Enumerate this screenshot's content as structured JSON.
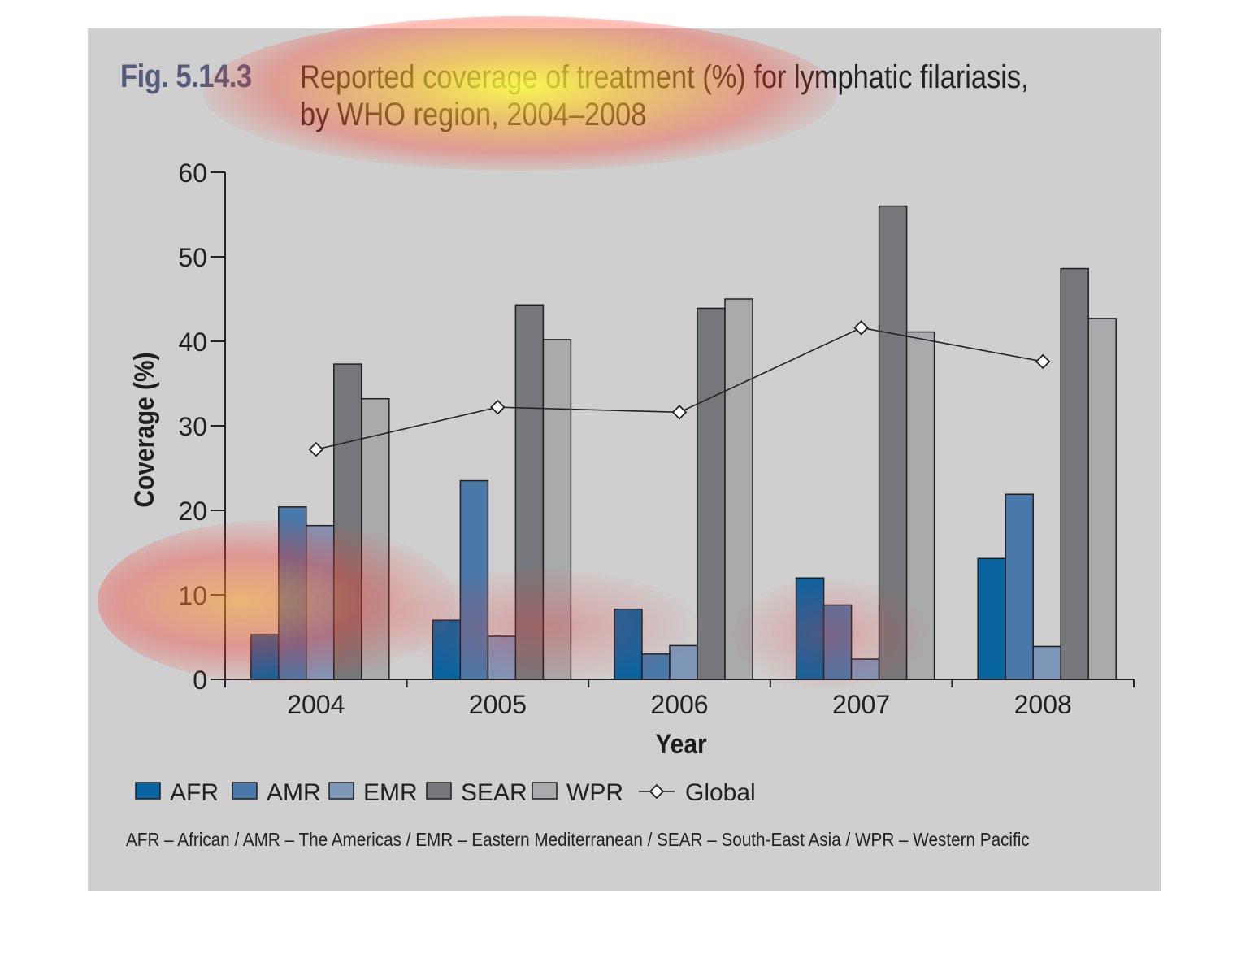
{
  "figure": {
    "label": "Fig. 5.14.3",
    "title_line1": "Reported coverage of treatment (%) for lymphatic filariasis,",
    "title_line2": "by WHO region, 2004–2008",
    "footnote": "AFR – African / AMR – The Americas / EMR – Eastern Mediterranean / SEAR – South-East Asia / WPR – Western Pacific"
  },
  "chart_data": {
    "type": "bar",
    "title": "Reported coverage of treatment (%) for lymphatic filariasis, by WHO region, 2004–2008",
    "xlabel": "Year",
    "ylabel": "Coverage (%)",
    "ylim": [
      0,
      60
    ],
    "yticks": [
      0,
      10,
      20,
      30,
      40,
      50,
      60
    ],
    "categories": [
      "2004",
      "2005",
      "2006",
      "2007",
      "2008"
    ],
    "series": [
      {
        "name": "AFR",
        "type": "bar",
        "color": "#0a64a0",
        "values": [
          5.3,
          7.0,
          8.3,
          12.0,
          14.3
        ]
      },
      {
        "name": "AMR",
        "type": "bar",
        "color": "#4a78a8",
        "values": [
          20.4,
          23.5,
          3.0,
          8.8,
          21.9
        ]
      },
      {
        "name": "EMR",
        "type": "bar",
        "color": "#7e96b8",
        "values": [
          18.2,
          5.1,
          4.0,
          2.4,
          3.9
        ]
      },
      {
        "name": "SEAR",
        "type": "bar",
        "color": "#76777a",
        "values": [
          37.3,
          44.3,
          43.9,
          56.0,
          48.6
        ]
      },
      {
        "name": "WPR",
        "type": "bar",
        "color": "#a9aaac",
        "values": [
          33.2,
          40.2,
          45.0,
          41.1,
          42.7
        ]
      },
      {
        "name": "Global",
        "type": "line",
        "marker": "diamond",
        "color": "#222222",
        "values": [
          27.2,
          32.2,
          31.6,
          41.6,
          37.6
        ]
      }
    ],
    "legend": "bottom",
    "grid": false
  }
}
